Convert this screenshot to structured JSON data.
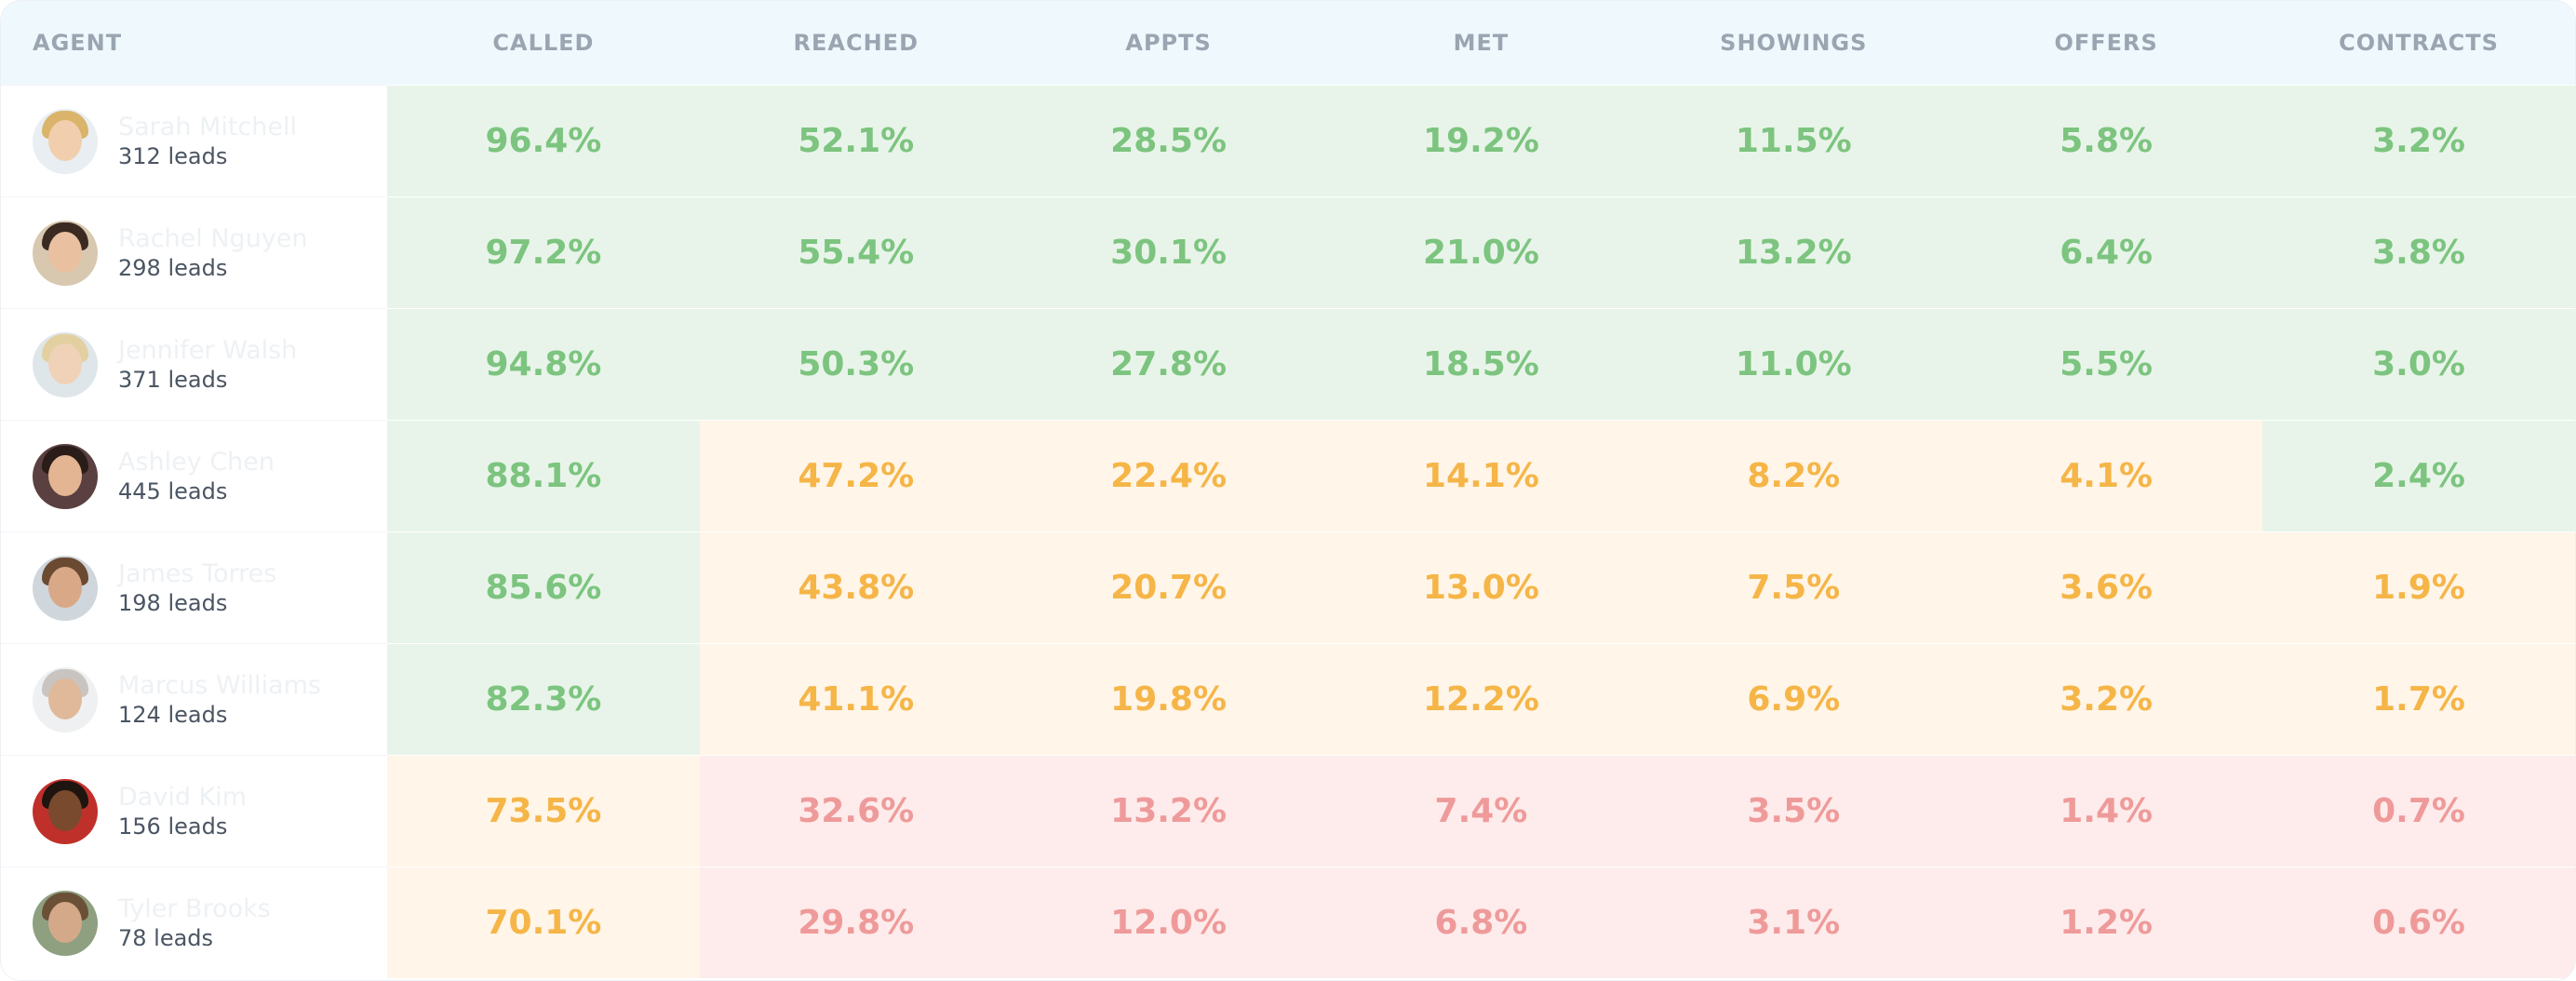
{
  "table": {
    "columns": [
      "AGENT",
      "CALLED",
      "REACHED",
      "APPTS",
      "MET",
      "SHOWINGS",
      "OFFERS",
      "CONTRACTS"
    ],
    "rows": [
      {
        "name": "Sarah Mitchell",
        "leads": "312 leads",
        "values": [
          "96.4%",
          "52.1%",
          "28.5%",
          "19.2%",
          "11.5%",
          "5.8%",
          "3.2%"
        ],
        "tones": [
          "green",
          "green",
          "green",
          "green",
          "green",
          "green",
          "green"
        ]
      },
      {
        "name": "Rachel Nguyen",
        "leads": "298 leads",
        "values": [
          "97.2%",
          "55.4%",
          "30.1%",
          "21.0%",
          "13.2%",
          "6.4%",
          "3.8%"
        ],
        "tones": [
          "green",
          "green",
          "green",
          "green",
          "green",
          "green",
          "green"
        ]
      },
      {
        "name": "Jennifer Walsh",
        "leads": "371 leads",
        "values": [
          "94.8%",
          "50.3%",
          "27.8%",
          "18.5%",
          "11.0%",
          "5.5%",
          "3.0%"
        ],
        "tones": [
          "green",
          "green",
          "green",
          "green",
          "green",
          "green",
          "green"
        ]
      },
      {
        "name": "Ashley Chen",
        "leads": "445 leads",
        "values": [
          "88.1%",
          "47.2%",
          "22.4%",
          "14.1%",
          "8.2%",
          "4.1%",
          "2.4%"
        ],
        "tones": [
          "green",
          "orange",
          "orange",
          "orange",
          "orange",
          "orange",
          "green"
        ]
      },
      {
        "name": "James Torres",
        "leads": "198 leads",
        "values": [
          "85.6%",
          "43.8%",
          "20.7%",
          "13.0%",
          "7.5%",
          "3.6%",
          "1.9%"
        ],
        "tones": [
          "green",
          "orange",
          "orange",
          "orange",
          "orange",
          "orange",
          "orange"
        ]
      },
      {
        "name": "Marcus Williams",
        "leads": "124 leads",
        "values": [
          "82.3%",
          "41.1%",
          "19.8%",
          "12.2%",
          "6.9%",
          "3.2%",
          "1.7%"
        ],
        "tones": [
          "green",
          "orange",
          "orange",
          "orange",
          "orange",
          "orange",
          "orange"
        ]
      },
      {
        "name": "David Kim",
        "leads": "156 leads",
        "values": [
          "73.5%",
          "32.6%",
          "13.2%",
          "7.4%",
          "3.5%",
          "1.4%",
          "0.7%"
        ],
        "tones": [
          "orange",
          "red",
          "red",
          "red",
          "red",
          "red",
          "red"
        ]
      },
      {
        "name": "Tyler Brooks",
        "leads": "78 leads",
        "values": [
          "70.1%",
          "29.8%",
          "12.0%",
          "6.8%",
          "3.1%",
          "1.2%",
          "0.6%"
        ],
        "tones": [
          "orange",
          "red",
          "red",
          "red",
          "red",
          "red",
          "red"
        ]
      }
    ]
  }
}
